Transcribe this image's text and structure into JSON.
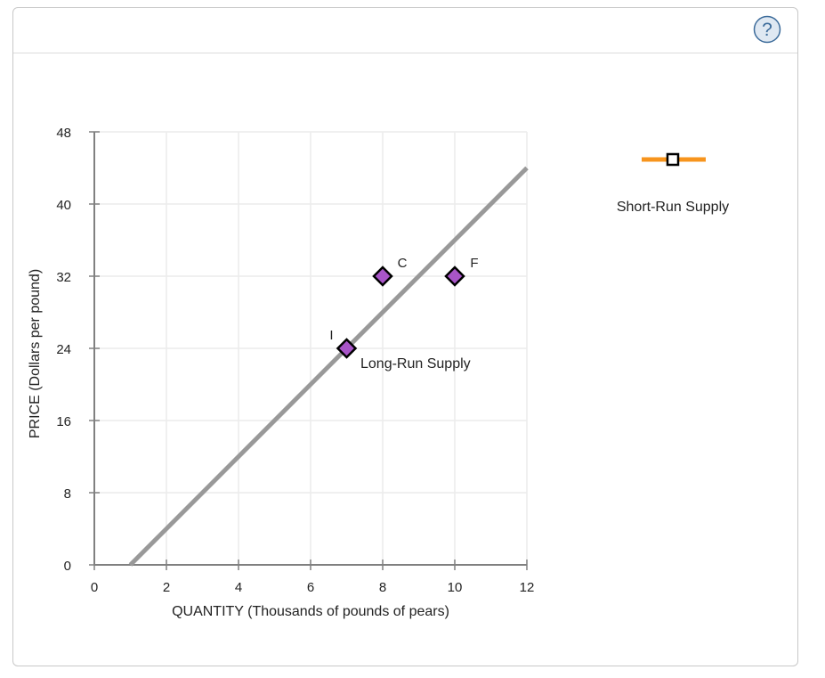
{
  "help_button": {
    "label": "?",
    "icon": "question-circle-icon"
  },
  "colors": {
    "grid": "#ececec",
    "axis": "#808080",
    "long_run_supply": "#999999",
    "point_fill": "#a855c8",
    "point_stroke": "#000000",
    "short_run_supply": "#f7941d",
    "help_fill": "#dfe8f2",
    "help_stroke": "#3d6c9b"
  },
  "legend": {
    "items": [
      {
        "label": "Short-Run Supply",
        "color": "#f7941d",
        "marker": "square"
      }
    ]
  },
  "chart_data": {
    "type": "line",
    "title": "",
    "xlabel": "QUANTITY (Thousands of pounds of pears)",
    "ylabel": "PRICE (Dollars per pound)",
    "xlim": [
      0,
      12
    ],
    "ylim": [
      0,
      48
    ],
    "x_ticks": [
      "0",
      "2",
      "4",
      "6",
      "8",
      "10",
      "12"
    ],
    "y_ticks": [
      "0",
      "8",
      "16",
      "24",
      "32",
      "40",
      "48"
    ],
    "grid": true,
    "legend_position": "right",
    "series": [
      {
        "name": "Long-Run Supply",
        "type": "line",
        "points": [
          [
            1,
            0
          ],
          [
            12,
            44
          ]
        ],
        "label_text": "Long-Run Supply",
        "label_at": [
          7.4,
          22.5
        ]
      }
    ],
    "points": [
      {
        "label": "C",
        "x": 8,
        "y": 32
      },
      {
        "label": "F",
        "x": 10,
        "y": 32
      },
      {
        "label": "I",
        "x": 7,
        "y": 24
      }
    ]
  }
}
